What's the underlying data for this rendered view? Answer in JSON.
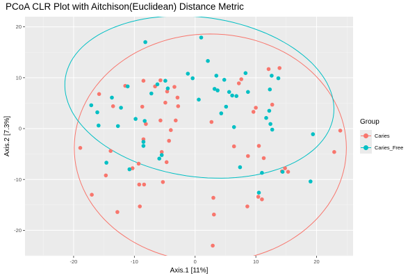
{
  "chart_data": {
    "type": "scatter",
    "title": "PCoA CLR Plot with Aitchison(Euclidean) Distance Metric",
    "xlabel": "Axis.1   [11%]",
    "ylabel": "Axis.2   [7.3%]",
    "xlim": [
      -28,
      26
    ],
    "ylim": [
      -25,
      22
    ],
    "xticks": [
      -20,
      -10,
      0,
      10,
      20
    ],
    "yticks": [
      -20,
      -10,
      0,
      10,
      20
    ],
    "grid": true,
    "legend": {
      "title": "Group",
      "placement": "right"
    },
    "series": [
      {
        "name": "Caries",
        "color": "#F8766D",
        "points": [
          [
            -18.9,
            -3.8
          ],
          [
            -15.8,
            6.8
          ],
          [
            -13.9,
            -4.4
          ],
          [
            -14.7,
            -9.2
          ],
          [
            -13.5,
            4.4
          ],
          [
            -12.8,
            -16.4
          ],
          [
            -17,
            -13
          ],
          [
            -11.5,
            8.4
          ],
          [
            -10.3,
            -7.8
          ],
          [
            -9.3,
            -6.9
          ],
          [
            -9.2,
            -11
          ],
          [
            -9.1,
            -15.3
          ],
          [
            -8.4,
            -11
          ],
          [
            -8.7,
            4.3
          ],
          [
            -8.5,
            -2.1
          ],
          [
            -8.5,
            9.4
          ],
          [
            -8.1,
            0.9
          ],
          [
            -6.6,
            8.3
          ],
          [
            -5.7,
            1.6
          ],
          [
            -5.7,
            9.5
          ],
          [
            -5.5,
            -4.6
          ],
          [
            -5.3,
            -10.5
          ],
          [
            -4.9,
            5.1
          ],
          [
            -4.7,
            -6.6
          ],
          [
            -4.6,
            7.3
          ],
          [
            -4.3,
            -2.4
          ],
          [
            -4,
            -0.3
          ],
          [
            -3.4,
            8.2
          ],
          [
            -3.2,
            1.6
          ],
          [
            -2.9,
            6.1
          ],
          [
            -2.8,
            4.4
          ],
          [
            2.7,
            1.3
          ],
          [
            3,
            -13.6
          ],
          [
            3.1,
            -16.9
          ],
          [
            2.9,
            -23
          ],
          [
            6.4,
            -3.5
          ],
          [
            7.6,
            9.7
          ],
          [
            8.6,
            -15.3
          ],
          [
            8.7,
            -5.4
          ],
          [
            9.6,
            3.3
          ],
          [
            10,
            4.1
          ],
          [
            10.5,
            -3.4
          ],
          [
            10.4,
            -13.4
          ],
          [
            11,
            -13.9
          ],
          [
            11.3,
            -5.8
          ],
          [
            12.7,
            4.7
          ],
          [
            13.9,
            11.9
          ],
          [
            14.3,
            -8.4
          ],
          [
            14.8,
            -7.8
          ],
          [
            15.3,
            -8.5
          ],
          [
            22.9,
            -4.6
          ],
          [
            23.9,
            -0.4
          ],
          [
            12.1,
            11.7
          ],
          [
            7.2,
            8.9
          ]
        ]
      },
      {
        "name": "Caries_Free",
        "color": "#00BFC4",
        "points": [
          [
            -17.1,
            4.6
          ],
          [
            -16.1,
            3.2
          ],
          [
            -15.9,
            0.6
          ],
          [
            -14.6,
            -6.7
          ],
          [
            -13.7,
            6.1
          ],
          [
            -12.7,
            0.5
          ],
          [
            -12.2,
            4.1
          ],
          [
            -11.1,
            8.3
          ],
          [
            -10.8,
            -8
          ],
          [
            -9.8,
            1.9
          ],
          [
            -8.5,
            -2.6
          ],
          [
            -8.5,
            -3.4
          ],
          [
            -8.3,
            1.5
          ],
          [
            -8.2,
            17
          ],
          [
            -7.2,
            6.9
          ],
          [
            -6.2,
            8.7
          ],
          [
            -5.9,
            -5.9
          ],
          [
            -5.5,
            -5.2
          ],
          [
            -4.9,
            9.4
          ],
          [
            -4.5,
            7.9
          ],
          [
            -1.2,
            10.8
          ],
          [
            -0.4,
            9.9
          ],
          [
            0.6,
            5.7
          ],
          [
            1,
            17.9
          ],
          [
            2.1,
            13.3
          ],
          [
            3.2,
            7.8
          ],
          [
            3.5,
            10.4
          ],
          [
            3.7,
            7.5
          ],
          [
            4.3,
            3
          ],
          [
            4.8,
            9.6
          ],
          [
            5.1,
            4.3
          ],
          [
            5.6,
            7.2
          ],
          [
            6.1,
            6.5
          ],
          [
            6.4,
            0.3
          ],
          [
            6.8,
            6.4
          ],
          [
            7.4,
            -7.6
          ],
          [
            8.3,
            10.9
          ],
          [
            8.7,
            7.2
          ],
          [
            10.5,
            -12.6
          ],
          [
            11,
            -8.7
          ],
          [
            11.7,
            2.1
          ],
          [
            12.2,
            3.5
          ],
          [
            12.3,
            7.7
          ],
          [
            12.4,
            0.9
          ],
          [
            12.6,
            10.4
          ],
          [
            12.7,
            -0.2
          ],
          [
            14.4,
            -8.5
          ],
          [
            19,
            -10.4
          ],
          [
            19.4,
            -1.1
          ],
          [
            13.7,
            9.9
          ]
        ]
      }
    ],
    "ellipses": [
      {
        "series": "Caries",
        "cx": 2.5,
        "cy": -3.8,
        "rx": 22.4,
        "ry": 22.4,
        "angle": -6
      },
      {
        "series": "Caries_Free",
        "cx": 0.7,
        "cy": 6.2,
        "rx": 22.4,
        "ry": 15.6,
        "angle": -12
      }
    ]
  }
}
